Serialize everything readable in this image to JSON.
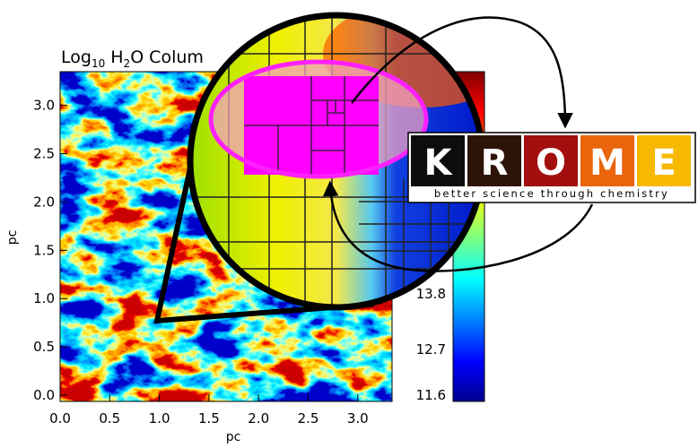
{
  "plot": {
    "title": {
      "base": "Log",
      "sub1": "10",
      "mid": " H",
      "sub2": "2",
      "rest": "O Colum"
    },
    "x_label": "pc",
    "y_label": "pc",
    "x_ticks": [
      "0.0",
      "0.5",
      "1.0",
      "1.5",
      "2.0",
      "2.5",
      "3.0"
    ],
    "y_ticks": [
      "0.0",
      "0.5",
      "1.0",
      "1.5",
      "2.0",
      "2.5",
      "3.0"
    ],
    "colorbar_ticks": [
      "11.6",
      "12.7",
      "13.8"
    ]
  },
  "logo": {
    "letters": [
      "K",
      "R",
      "O",
      "M",
      "E"
    ],
    "tagline": "better science through chemistry"
  }
}
